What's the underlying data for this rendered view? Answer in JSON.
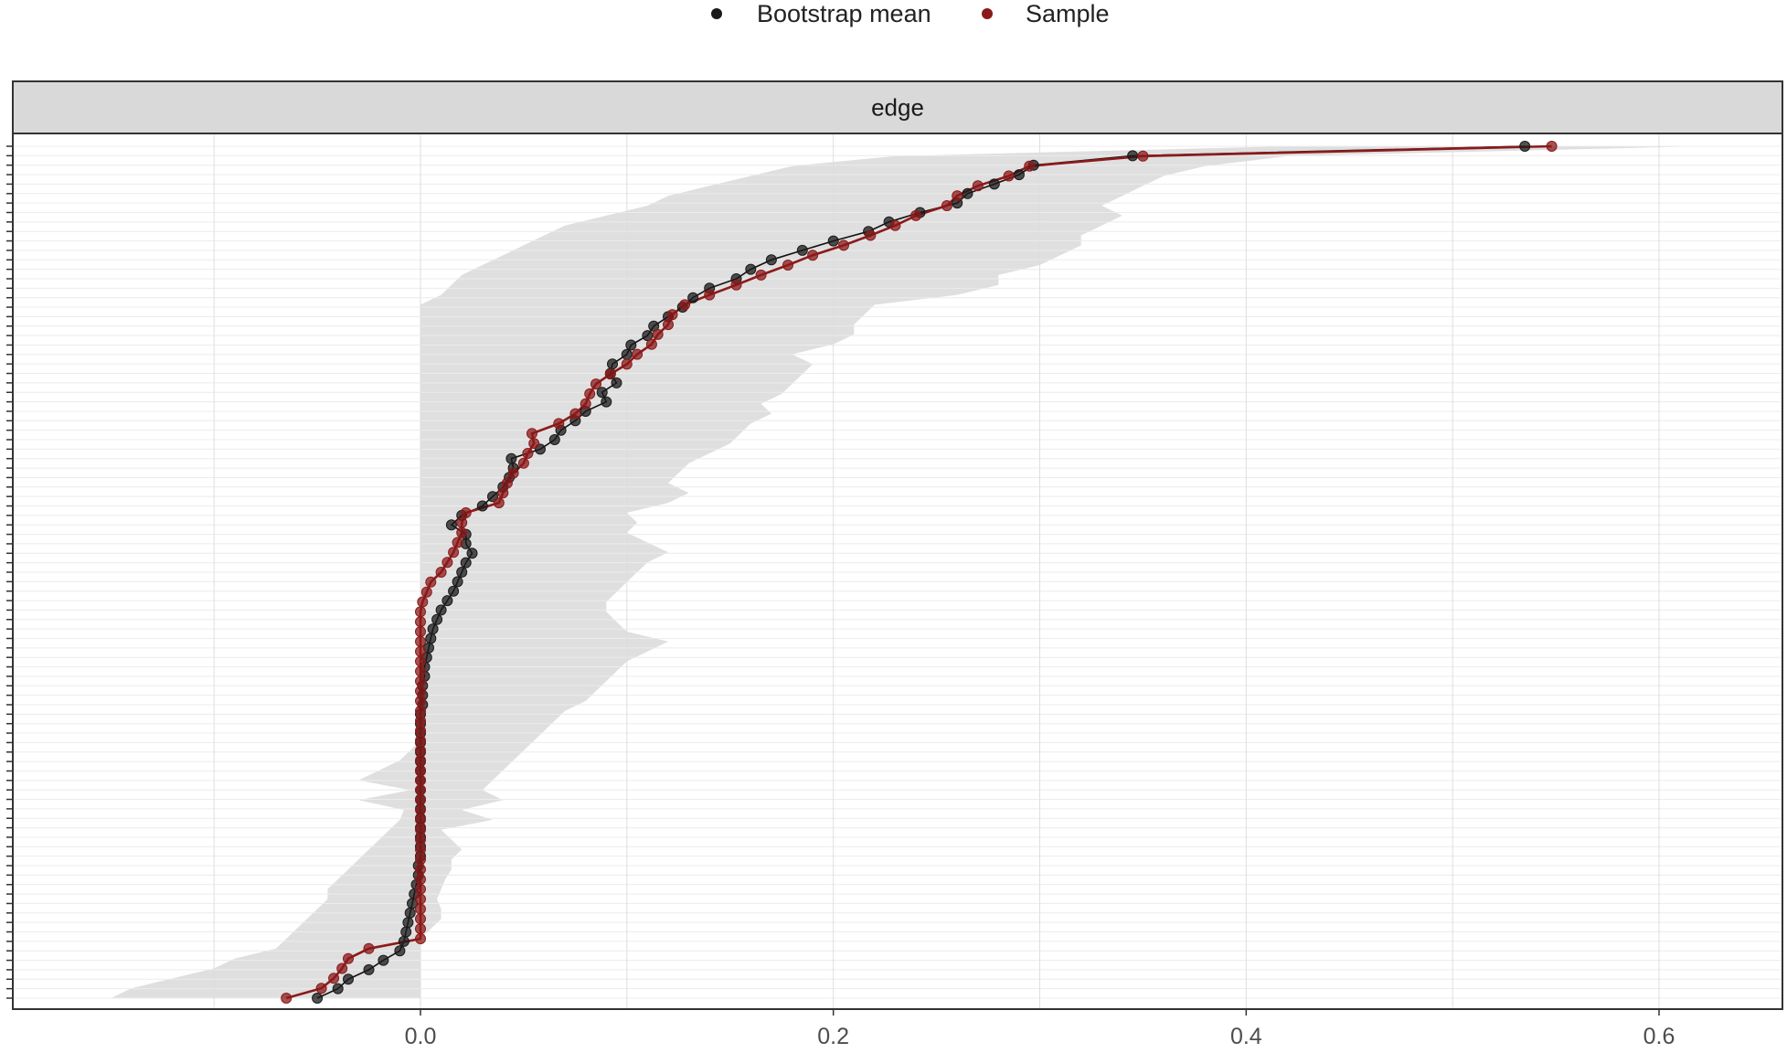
{
  "chart_data": {
    "type": "scatter",
    "title": "",
    "facet_label": "edge",
    "xlabel": "",
    "ylabel": "",
    "xlim": [
      -0.197,
      0.662
    ],
    "x_ticks": [
      0.0,
      0.2,
      0.4,
      0.6
    ],
    "x_tick_labels": [
      "0.0",
      "0.2",
      "0.4",
      "0.6"
    ],
    "grid": true,
    "legend_position": "top",
    "legend": [
      {
        "name": "Bootstrap mean",
        "color": "#1a1a1a"
      },
      {
        "name": "Sample",
        "color": "#8b1a1a"
      }
    ],
    "series": [
      {
        "name": "Bootstrap mean",
        "color": "#1a1a1a",
        "values": [
          -0.05,
          -0.04,
          -0.035,
          -0.025,
          -0.018,
          -0.01,
          -0.008,
          -0.007,
          -0.006,
          -0.005,
          -0.004,
          -0.003,
          -0.002,
          -0.001,
          -0.001,
          0.0,
          0.0,
          0.0,
          0.0,
          0.0,
          0.0,
          0.0,
          0.0,
          0.0,
          0.0,
          0.0,
          0.0,
          0.0,
          0.0,
          0.0,
          0.0,
          0.001,
          0.001,
          0.001,
          0.002,
          0.002,
          0.003,
          0.004,
          0.005,
          0.006,
          0.008,
          0.01,
          0.013,
          0.016,
          0.018,
          0.02,
          0.022,
          0.025,
          0.022,
          0.022,
          0.015,
          0.02,
          0.03,
          0.035,
          0.04,
          0.043,
          0.045,
          0.044,
          0.058,
          0.065,
          0.068,
          0.075,
          0.08,
          0.09,
          0.088,
          0.095,
          0.092,
          0.093,
          0.1,
          0.102,
          0.11,
          0.113,
          0.12,
          0.127,
          0.132,
          0.14,
          0.153,
          0.16,
          0.17,
          0.185,
          0.2,
          0.217,
          0.227,
          0.242,
          0.26,
          0.265,
          0.278,
          0.29,
          0.297,
          0.345,
          0.535
        ]
      },
      {
        "name": "Sample",
        "color": "#8b1a1a",
        "values": [
          -0.065,
          -0.048,
          -0.042,
          -0.038,
          -0.035,
          -0.025,
          0.0,
          0.0,
          0.0,
          0.0,
          0.0,
          0.0,
          0.0,
          0.0,
          0.0,
          0.0,
          0.0,
          0.0,
          0.0,
          0.0,
          0.0,
          0.0,
          0.0,
          0.0,
          0.0,
          0.0,
          0.0,
          0.0,
          0.0,
          0.0,
          0.0,
          0.0,
          0.0,
          0.0,
          0.0,
          0.0,
          0.0,
          0.0,
          0.0,
          0.0,
          0.001,
          0.003,
          0.005,
          0.01,
          0.013,
          0.016,
          0.018,
          0.02,
          0.02,
          0.022,
          0.038,
          0.04,
          0.042,
          0.045,
          0.05,
          0.052,
          0.055,
          0.054,
          0.067,
          0.075,
          0.08,
          0.082,
          0.085,
          0.092,
          0.1,
          0.105,
          0.112,
          0.115,
          0.12,
          0.122,
          0.128,
          0.14,
          0.153,
          0.165,
          0.178,
          0.19,
          0.205,
          0.218,
          0.23,
          0.24,
          0.255,
          0.26,
          0.27,
          0.285,
          0.295,
          0.35,
          0.548
        ]
      }
    ],
    "ci_band": {
      "lower": [
        -0.15,
        -0.14,
        -0.12,
        -0.1,
        -0.09,
        -0.07,
        -0.065,
        -0.06,
        -0.055,
        -0.05,
        -0.045,
        -0.045,
        -0.04,
        -0.035,
        -0.03,
        -0.025,
        -0.02,
        -0.015,
        -0.01,
        -0.008,
        -0.03,
        -0.005,
        -0.03,
        -0.02,
        -0.01,
        -0.005,
        0.0,
        0.0,
        0.0,
        0.0,
        0.0,
        0.0,
        0.0,
        0.0,
        0.0,
        0.0,
        0.0,
        0.0,
        0.0,
        0.0,
        0.0,
        0.0,
        0.0,
        0.0,
        0.0,
        0.0,
        0.0,
        0.0,
        0.0,
        0.0,
        0.0,
        0.0,
        0.0,
        0.0,
        0.0,
        0.0,
        0.0,
        0.0,
        0.0,
        0.0,
        0.0,
        0.0,
        0.0,
        0.0,
        0.0,
        0.0,
        0.0,
        0.0,
        0.0,
        0.0,
        0.0,
        0.01,
        0.015,
        0.02,
        0.03,
        0.04,
        0.05,
        0.06,
        0.07,
        0.09,
        0.11,
        0.12,
        0.14,
        0.16,
        0.18,
        0.23,
        0.42
      ],
      "upper": [
        0.0,
        0.0,
        0.0,
        0.0,
        0.0,
        0.0,
        0.0,
        0.005,
        0.01,
        0.01,
        0.008,
        0.01,
        0.012,
        0.015,
        0.015,
        0.02,
        0.015,
        0.01,
        0.035,
        0.02,
        0.04,
        0.03,
        0.035,
        0.04,
        0.045,
        0.05,
        0.055,
        0.06,
        0.065,
        0.07,
        0.08,
        0.085,
        0.09,
        0.095,
        0.1,
        0.11,
        0.12,
        0.1,
        0.095,
        0.09,
        0.09,
        0.095,
        0.1,
        0.105,
        0.11,
        0.12,
        0.11,
        0.1,
        0.105,
        0.1,
        0.12,
        0.13,
        0.12,
        0.125,
        0.13,
        0.14,
        0.15,
        0.155,
        0.16,
        0.17,
        0.165,
        0.175,
        0.18,
        0.185,
        0.19,
        0.18,
        0.2,
        0.21,
        0.21,
        0.215,
        0.22,
        0.26,
        0.28,
        0.28,
        0.3,
        0.31,
        0.32,
        0.32,
        0.33,
        0.34,
        0.33,
        0.34,
        0.35,
        0.36,
        0.38,
        0.42,
        0.62
      ]
    }
  }
}
